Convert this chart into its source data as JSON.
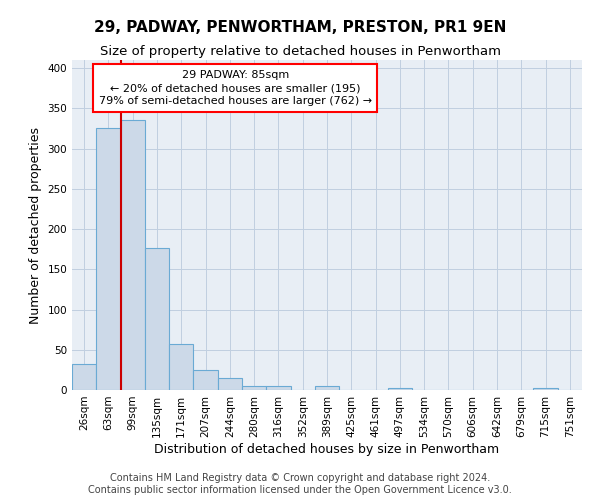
{
  "title": "29, PADWAY, PENWORTHAM, PRESTON, PR1 9EN",
  "subtitle": "Size of property relative to detached houses in Penwortham",
  "xlabel": "Distribution of detached houses by size in Penwortham",
  "ylabel": "Number of detached properties",
  "footer_line1": "Contains HM Land Registry data © Crown copyright and database right 2024.",
  "footer_line2": "Contains public sector information licensed under the Open Government Licence v3.0.",
  "bar_labels": [
    "26sqm",
    "63sqm",
    "99sqm",
    "135sqm",
    "171sqm",
    "207sqm",
    "244sqm",
    "280sqm",
    "316sqm",
    "352sqm",
    "389sqm",
    "425sqm",
    "461sqm",
    "497sqm",
    "534sqm",
    "570sqm",
    "606sqm",
    "642sqm",
    "679sqm",
    "715sqm",
    "751sqm"
  ],
  "bar_values": [
    32,
    325,
    335,
    177,
    57,
    25,
    15,
    5,
    5,
    0,
    5,
    0,
    0,
    3,
    0,
    0,
    0,
    0,
    0,
    3,
    0
  ],
  "bar_color": "#ccd9e8",
  "bar_edge_color": "#6aaad4",
  "red_line_x": 1.5,
  "annotation_line1": "29 PADWAY: 85sqm",
  "annotation_line2": "← 20% of detached houses are smaller (195)",
  "annotation_line3": "79% of semi-detached houses are larger (762) →",
  "annotation_box_color": "white",
  "annotation_box_edge": "red",
  "red_line_color": "#cc0000",
  "ylim": [
    0,
    410
  ],
  "yticks": [
    0,
    50,
    100,
    150,
    200,
    250,
    300,
    350,
    400
  ],
  "grid_color": "#c0cfe0",
  "background_color": "#e8eef5",
  "title_fontsize": 11,
  "subtitle_fontsize": 9.5,
  "axis_label_fontsize": 9,
  "tick_fontsize": 7.5,
  "annotation_fontsize": 8,
  "footer_fontsize": 7
}
